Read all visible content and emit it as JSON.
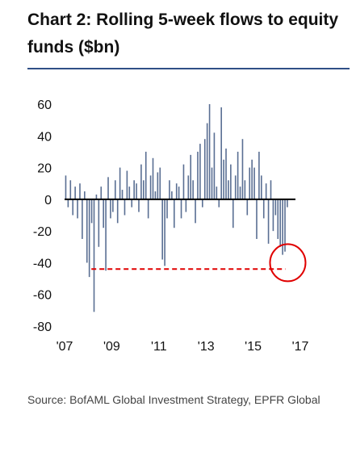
{
  "header": {
    "title": "Chart 2: Rolling 5-week flows to equity funds ($bn)"
  },
  "footer": {
    "source": "Source: BofAML Global Investment Strategy, EPFR Global"
  },
  "colors": {
    "title_rule": "#2f4f86",
    "bars": "#5a6f93",
    "zero_line": "#000000",
    "threshold_line": "#e00000",
    "highlight_circle": "#e00000"
  },
  "chart_data": {
    "type": "bar",
    "title": "Chart 2: Rolling 5-week flows to equity funds ($bn)",
    "xlabel": "",
    "ylabel": "",
    "ylim": [
      -80,
      60
    ],
    "xlim": [
      2007.0,
      2017.0
    ],
    "yticks": [
      60,
      40,
      20,
      0,
      -20,
      -40,
      -60,
      -80
    ],
    "ytick_labels": [
      "60",
      "40",
      "20",
      "0",
      "-20",
      "-40",
      "-60",
      "-80"
    ],
    "xticks": [
      2007,
      2009,
      2011,
      2013,
      2015,
      2017
    ],
    "xtick_labels": [
      "'07",
      "'09",
      "'11",
      "'13",
      "'15",
      "'17"
    ],
    "grid": false,
    "series": [
      {
        "x": [
          2007.0,
          2007.1,
          2007.2,
          2007.3,
          2007.4,
          2007.5,
          2007.6,
          2007.7,
          2007.8,
          2007.9,
          2008.0,
          2008.1,
          2008.2,
          2008.3,
          2008.4,
          2008.5,
          2008.6,
          2008.7,
          2008.8,
          2008.9,
          2009.0,
          2009.1,
          2009.2,
          2009.3,
          2009.4,
          2009.5,
          2009.6,
          2009.7,
          2009.8,
          2009.9,
          2010.0,
          2010.1,
          2010.2,
          2010.3,
          2010.4,
          2010.5,
          2010.6,
          2010.7,
          2010.8,
          2010.9,
          2011.0,
          2011.1,
          2011.2,
          2011.3,
          2011.4,
          2011.5,
          2011.6,
          2011.7,
          2011.8,
          2011.9,
          2012.0,
          2012.1,
          2012.2,
          2012.3,
          2012.4,
          2012.5,
          2012.6,
          2012.7,
          2012.8,
          2012.9,
          2013.0,
          2013.1,
          2013.2,
          2013.3,
          2013.4,
          2013.5,
          2013.6,
          2013.7,
          2013.8,
          2013.9,
          2014.0,
          2014.1,
          2014.2,
          2014.3,
          2014.4,
          2014.5,
          2014.6,
          2014.7,
          2014.8,
          2014.9,
          2015.0,
          2015.1,
          2015.2,
          2015.3,
          2015.4,
          2015.5,
          2015.6,
          2015.7,
          2015.8,
          2015.9,
          2016.0,
          2016.1,
          2016.2,
          2016.3,
          2016.4
        ],
        "values": [
          15,
          -5,
          12,
          -10,
          8,
          -12,
          10,
          -25,
          5,
          -40,
          -49,
          -15,
          -71,
          3,
          -30,
          8,
          -18,
          -45,
          14,
          -12,
          -8,
          12,
          -15,
          20,
          6,
          -10,
          18,
          8,
          -5,
          12,
          10,
          -8,
          22,
          12,
          30,
          -12,
          15,
          26,
          5,
          17,
          20,
          -38,
          -42,
          -12,
          12,
          5,
          -18,
          10,
          8,
          -12,
          22,
          -8,
          15,
          28,
          12,
          -15,
          30,
          35,
          -5,
          38,
          48,
          60,
          20,
          42,
          8,
          -5,
          58,
          25,
          32,
          12,
          22,
          -18,
          15,
          30,
          8,
          38,
          12,
          -10,
          20,
          25,
          20,
          -25,
          30,
          15,
          -12,
          10,
          -28,
          12,
          -20,
          -10,
          -25,
          -30,
          -35,
          -33,
          -5
        ]
      }
    ],
    "annotations": [
      {
        "type": "horizontal-dashed-line",
        "y": -44,
        "x_range": [
          2008.0,
          2016.3
        ]
      },
      {
        "type": "circle",
        "x": 2016.4,
        "y": -40
      }
    ]
  }
}
